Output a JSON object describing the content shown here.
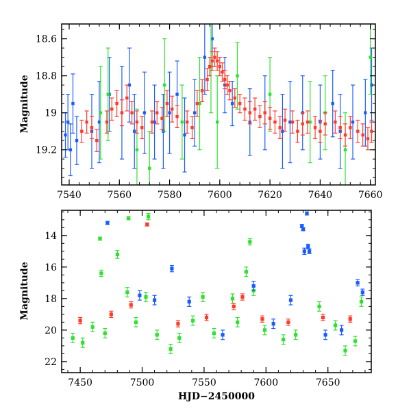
{
  "chart_data": [
    {
      "type": "scatter",
      "panel": "top",
      "title": "",
      "xlabel": "",
      "ylabel": "Magnitude",
      "xlim": [
        7537,
        7662
      ],
      "ylim": [
        19.39,
        18.52
      ],
      "y_inverted": true,
      "grid": false,
      "legend": "none",
      "xticks": [
        7540,
        7560,
        7580,
        7600,
        7620,
        7640,
        7660
      ],
      "yticks": [
        18.6,
        18.8,
        19,
        19.2
      ],
      "xtick_labels": [
        "7540",
        "7560",
        "7580",
        "7600",
        "7620",
        "7640",
        "7660"
      ],
      "ytick_labels": [
        "18.6",
        "18.8",
        "19",
        "19.2"
      ],
      "series": [
        {
          "color": "#1a5cff",
          "points": [
            [
              7538.5,
              19.12,
              0.12
            ],
            [
              7539.5,
              19.05,
              0.15
            ],
            [
              7540.5,
              19.2,
              0.14
            ],
            [
              7541.5,
              18.95,
              0.16
            ],
            [
              7543.0,
              19.15,
              0.13
            ],
            [
              7549.0,
              19.1,
              0.2
            ],
            [
              7552.0,
              19.05,
              0.22
            ],
            [
              7556.0,
              18.9,
              0.2
            ],
            [
              7561.0,
              19.0,
              0.25
            ],
            [
              7564.0,
              18.85,
              0.2
            ],
            [
              7566.0,
              19.1,
              0.2
            ],
            [
              7570.0,
              19.0,
              0.22
            ],
            [
              7574.0,
              19.05,
              0.2
            ],
            [
              7577.5,
              19.1,
              0.2
            ],
            [
              7580.0,
              19.0,
              0.22
            ],
            [
              7583.0,
              18.9,
              0.18
            ],
            [
              7586.0,
              19.12,
              0.2
            ],
            [
              7590.0,
              19.0,
              0.18
            ],
            [
              7594.0,
              18.7,
              0.2
            ],
            [
              7597.0,
              18.6,
              0.15
            ],
            [
              7602.0,
              18.85,
              0.15
            ],
            [
              7605.0,
              18.95,
              0.12
            ],
            [
              7612.0,
              19.05,
              0.18
            ],
            [
              7618.0,
              19.0,
              0.2
            ],
            [
              7625.0,
              19.1,
              0.2
            ],
            [
              7628.0,
              19.05,
              0.22
            ],
            [
              7633.0,
              19.0,
              0.2
            ],
            [
              7640.0,
              19.05,
              0.2
            ],
            [
              7645.0,
              18.95,
              0.18
            ],
            [
              7648.0,
              19.1,
              0.2
            ],
            [
              7653.0,
              19.05,
              0.2
            ],
            [
              7658.0,
              19.0,
              0.18
            ],
            [
              7660.5,
              18.85,
              0.2
            ]
          ]
        },
        {
          "color": "#30e030",
          "points": [
            [
              7552.5,
              19.0,
              0.25
            ],
            [
              7555.5,
              18.9,
              0.25
            ],
            [
              7567.0,
              19.2,
              0.22
            ],
            [
              7572.0,
              19.3,
              0.2
            ],
            [
              7578.0,
              18.85,
              0.25
            ],
            [
              7585.0,
              19.05,
              0.2
            ],
            [
              7592.0,
              18.95,
              0.25
            ],
            [
              7596.5,
              18.75,
              0.25
            ],
            [
              7599.0,
              19.05,
              0.25
            ],
            [
              7607.0,
              18.8,
              0.18
            ],
            [
              7620.0,
              18.9,
              0.2
            ],
            [
              7636.0,
              19.05,
              0.22
            ],
            [
              7642.0,
              19.0,
              0.2
            ],
            [
              7650.0,
              19.2,
              0.2
            ],
            [
              7660.0,
              18.7,
              0.2
            ]
          ]
        },
        {
          "color": "#ff3a2a",
          "points": [
            [
              7545.0,
              19.1,
              0.06
            ],
            [
              7547.0,
              19.05,
              0.06
            ],
            [
              7549.0,
              19.08,
              0.06
            ],
            [
              7551.0,
              19.15,
              0.06
            ],
            [
              7555.0,
              19.05,
              0.06
            ],
            [
              7557.0,
              18.98,
              0.06
            ],
            [
              7559.0,
              18.95,
              0.07
            ],
            [
              7561.0,
              19.0,
              0.07
            ],
            [
              7563.0,
              18.92,
              0.07
            ],
            [
              7565.0,
              19.0,
              0.06
            ],
            [
              7567.0,
              19.05,
              0.06
            ],
            [
              7569.0,
              19.08,
              0.06
            ],
            [
              7573.0,
              19.05,
              0.06
            ],
            [
              7575.0,
              19.0,
              0.06
            ],
            [
              7577.0,
              19.03,
              0.06
            ],
            [
              7579.0,
              18.95,
              0.07
            ],
            [
              7581.0,
              18.98,
              0.07
            ],
            [
              7583.0,
              19.02,
              0.06
            ],
            [
              7587.0,
              19.05,
              0.06
            ],
            [
              7589.0,
              19.08,
              0.06
            ],
            [
              7591.0,
              18.95,
              0.07
            ],
            [
              7593.0,
              18.88,
              0.06
            ],
            [
              7595.0,
              18.82,
              0.06
            ],
            [
              7596.0,
              18.75,
              0.05
            ],
            [
              7597.0,
              18.72,
              0.05
            ],
            [
              7598.0,
              18.7,
              0.05
            ],
            [
              7599.0,
              18.72,
              0.05
            ],
            [
              7600.0,
              18.75,
              0.05
            ],
            [
              7601.0,
              18.78,
              0.05
            ],
            [
              7602.0,
              18.82,
              0.05
            ],
            [
              7603.0,
              18.85,
              0.05
            ],
            [
              7604.0,
              18.88,
              0.05
            ],
            [
              7606.0,
              18.92,
              0.05
            ],
            [
              7608.0,
              18.95,
              0.05
            ],
            [
              7610.0,
              18.98,
              0.06
            ],
            [
              7612.0,
              19.0,
              0.06
            ],
            [
              7614.0,
              18.98,
              0.06
            ],
            [
              7616.0,
              19.02,
              0.06
            ],
            [
              7618.0,
              19.0,
              0.06
            ],
            [
              7620.0,
              19.03,
              0.06
            ],
            [
              7622.0,
              19.05,
              0.06
            ],
            [
              7624.0,
              19.08,
              0.06
            ],
            [
              7626.0,
              19.04,
              0.06
            ],
            [
              7629.0,
              19.05,
              0.06
            ],
            [
              7631.0,
              19.1,
              0.06
            ],
            [
              7633.0,
              19.06,
              0.06
            ],
            [
              7635.0,
              19.05,
              0.06
            ],
            [
              7638.0,
              19.08,
              0.06
            ],
            [
              7640.0,
              19.1,
              0.06
            ],
            [
              7642.0,
              19.06,
              0.06
            ],
            [
              7646.0,
              19.05,
              0.06
            ],
            [
              7648.0,
              19.08,
              0.06
            ],
            [
              7650.0,
              19.12,
              0.06
            ],
            [
              7652.0,
              19.08,
              0.06
            ],
            [
              7655.0,
              19.1,
              0.06
            ],
            [
              7657.0,
              19.12,
              0.06
            ],
            [
              7659.0,
              19.14,
              0.06
            ],
            [
              7660.5,
              19.1,
              0.06
            ]
          ]
        }
      ]
    },
    {
      "type": "scatter",
      "panel": "bottom",
      "title": "",
      "xlabel": "HJD−2450000",
      "ylabel": "Magnitude",
      "xlim": [
        7435,
        7685
      ],
      "ylim": [
        22.7,
        12.4
      ],
      "y_inverted": true,
      "grid": false,
      "legend": "none",
      "xticks": [
        7450,
        7500,
        7550,
        7600,
        7650
      ],
      "yticks": [
        14,
        16,
        18,
        20,
        22
      ],
      "xtick_labels": [
        "7450",
        "7500",
        "7550",
        "7600",
        "7650"
      ],
      "ytick_labels": [
        "14",
        "16",
        "18",
        "20",
        "22"
      ],
      "series": [
        {
          "color": "#30e030",
          "points": [
            [
              7466,
              14.2,
              0.1
            ],
            [
              7467,
              16.4,
              0.2
            ],
            [
              7480,
              15.2,
              0.25
            ],
            [
              7489,
              12.9,
              0.1
            ],
            [
              7505,
              12.8,
              0.2
            ],
            [
              7584,
              16.3,
              0.3
            ],
            [
              7587,
              14.4,
              0.2
            ],
            [
              7444,
              20.5,
              0.3
            ],
            [
              7452,
              20.8,
              0.3
            ],
            [
              7460,
              19.8,
              0.3
            ],
            [
              7470,
              20.2,
              0.3
            ],
            [
              7488,
              17.6,
              0.3
            ],
            [
              7495,
              19.5,
              0.3
            ],
            [
              7503,
              17.9,
              0.3
            ],
            [
              7512,
              20.3,
              0.3
            ],
            [
              7523,
              21.2,
              0.3
            ],
            [
              7530,
              20.5,
              0.3
            ],
            [
              7541,
              19.4,
              0.3
            ],
            [
              7549,
              17.9,
              0.3
            ],
            [
              7558,
              20.2,
              0.3
            ],
            [
              7573,
              18.0,
              0.3
            ],
            [
              7577,
              19.5,
              0.3
            ],
            [
              7590,
              17.5,
              0.3
            ],
            [
              7599,
              20.0,
              0.3
            ],
            [
              7614,
              20.6,
              0.3
            ],
            [
              7624,
              20.3,
              0.3
            ],
            [
              7643,
              18.5,
              0.3
            ],
            [
              7656,
              19.7,
              0.3
            ],
            [
              7664,
              21.3,
              0.3
            ],
            [
              7672,
              20.7,
              0.3
            ],
            [
              7677,
              18.2,
              0.3
            ]
          ]
        },
        {
          "color": "#1a5cff",
          "points": [
            [
              7472,
              13.2,
              0.1
            ],
            [
              7524,
              16.1,
              0.2
            ],
            [
              7629,
              13.4,
              0.1
            ],
            [
              7630,
              13.6,
              0.1
            ],
            [
              7631,
              15.0,
              0.2
            ],
            [
              7633,
              12.6,
              0.1
            ],
            [
              7634,
              14.7,
              0.15
            ],
            [
              7635,
              15.0,
              0.15
            ],
            [
              7674,
              17.0,
              0.2
            ],
            [
              7678,
              17.6,
              0.2
            ],
            [
              7498,
              17.8,
              0.3
            ],
            [
              7510,
              18.1,
              0.3
            ],
            [
              7538,
              18.2,
              0.3
            ],
            [
              7565,
              20.3,
              0.3
            ],
            [
              7590,
              17.2,
              0.3
            ],
            [
              7606,
              19.6,
              0.3
            ],
            [
              7620,
              18.1,
              0.3
            ],
            [
              7648,
              20.3,
              0.3
            ],
            [
              7661,
              20.0,
              0.3
            ]
          ]
        },
        {
          "color": "#ff3a2a",
          "points": [
            [
              7504,
              13.3,
              0.1
            ],
            [
              7581,
              17.9,
              0.2
            ],
            [
              7450,
              19.4,
              0.2
            ],
            [
              7475,
              19.0,
              0.2
            ],
            [
              7491,
              18.4,
              0.2
            ],
            [
              7529,
              19.6,
              0.2
            ],
            [
              7552,
              19.2,
              0.2
            ],
            [
              7574,
              18.5,
              0.2
            ],
            [
              7597,
              19.3,
              0.2
            ],
            [
              7618,
              19.5,
              0.2
            ],
            [
              7646,
              19.2,
              0.2
            ],
            [
              7668,
              19.3,
              0.2
            ]
          ]
        }
      ]
    }
  ]
}
